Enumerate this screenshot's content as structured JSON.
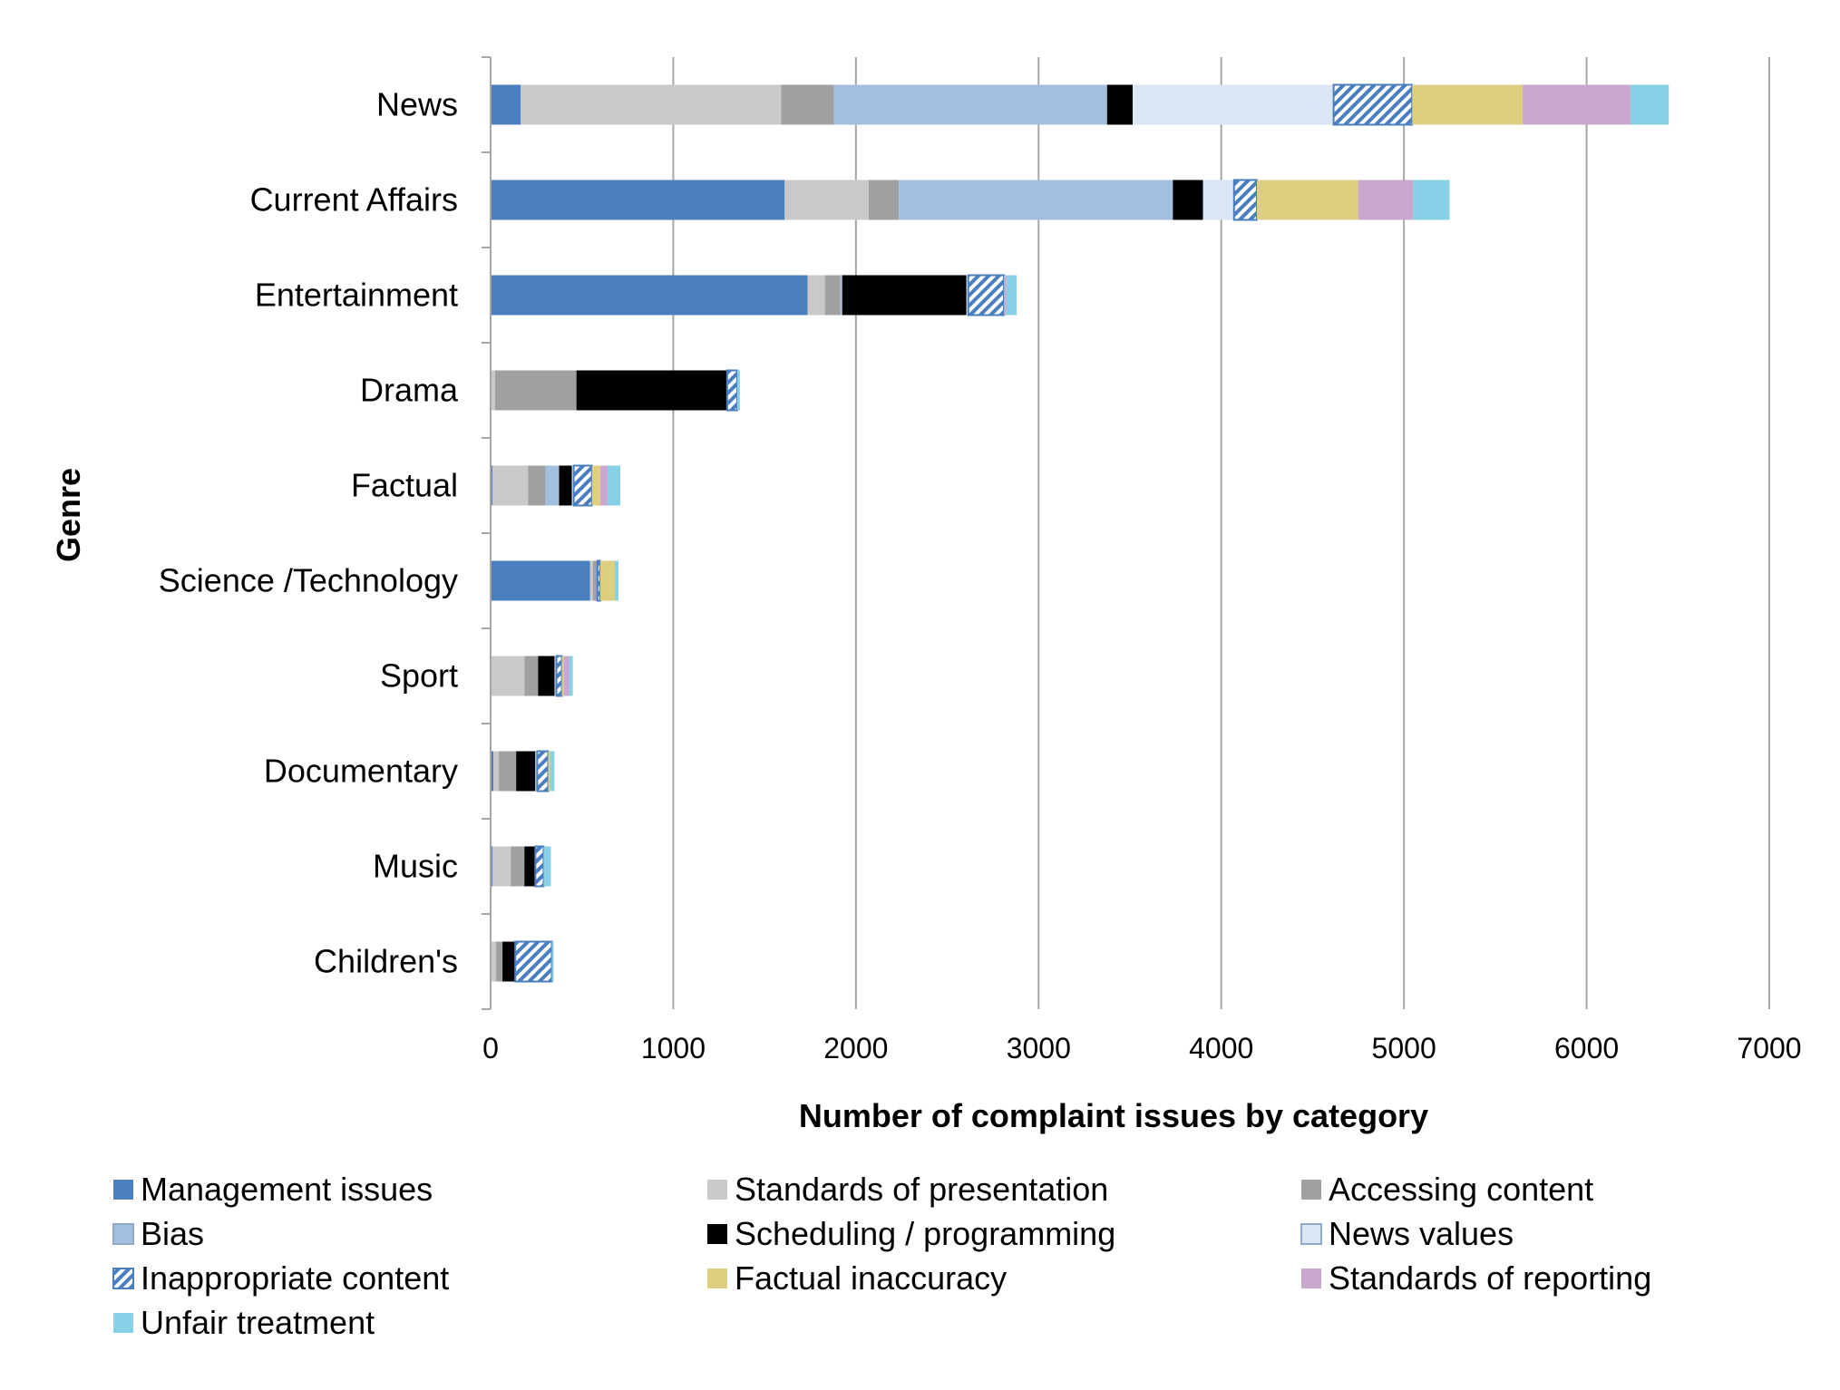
{
  "chart_data": {
    "type": "bar",
    "orientation": "horizontal",
    "stacked": true,
    "title": "",
    "xlabel": "Number of complaint issues by category",
    "ylabel": "Genre",
    "xlim": [
      0,
      7000
    ],
    "xticks": [
      0,
      1000,
      2000,
      3000,
      4000,
      5000,
      6000,
      7000
    ],
    "grid": "vertical",
    "legend_position": "bottom",
    "categories": [
      "News",
      "Current Affairs",
      "Entertainment",
      "Drama",
      "Factual",
      "Science /Technology",
      "Sport",
      "Documentary",
      "Music",
      "Children's"
    ],
    "series": [
      {
        "name": "Management issues",
        "color": "#4A7EBF",
        "pattern": "solid",
        "values": [
          165,
          1610,
          1735,
          0,
          10,
          545,
          0,
          15,
          10,
          0
        ]
      },
      {
        "name": "Standards of presentation",
        "color": "#C9C9C9",
        "pattern": "solid",
        "values": [
          1425,
          460,
          95,
          25,
          195,
          15,
          185,
          30,
          100,
          30
        ]
      },
      {
        "name": "Accessing content",
        "color": "#A0A0A0",
        "pattern": "solid",
        "values": [
          290,
          165,
          85,
          445,
          95,
          25,
          75,
          95,
          75,
          35
        ]
      },
      {
        "name": "Bias",
        "color": "#A3BFDF",
        "pattern": "solid",
        "values": [
          1495,
          1500,
          10,
          0,
          75,
          0,
          0,
          0,
          0,
          0
        ]
      },
      {
        "name": "Scheduling / programming",
        "color": "#000000",
        "pattern": "solid",
        "values": [
          140,
          165,
          680,
          825,
          70,
          0,
          90,
          105,
          60,
          70
        ]
      },
      {
        "name": "News values",
        "color": "#DAE6F4",
        "pattern": "solid",
        "values": [
          1100,
          170,
          10,
          0,
          10,
          0,
          10,
          10,
          0,
          0
        ]
      },
      {
        "name": "Inappropriate content",
        "color": "#4A7EBF",
        "pattern": "hatch",
        "values": [
          430,
          125,
          195,
          55,
          100,
          15,
          30,
          60,
          45,
          200
        ]
      },
      {
        "name": "Factual inaccuracy",
        "color": "#DDCE80",
        "pattern": "solid",
        "values": [
          605,
          555,
          0,
          0,
          45,
          80,
          10,
          10,
          0,
          0
        ]
      },
      {
        "name": "Standards of reporting",
        "color": "#C9A7CF",
        "pattern": "solid",
        "values": [
          590,
          300,
          10,
          0,
          40,
          0,
          30,
          0,
          0,
          0
        ]
      },
      {
        "name": "Unfair treatment",
        "color": "#88D0E6",
        "pattern": "solid",
        "values": [
          210,
          200,
          60,
          15,
          70,
          20,
          20,
          25,
          40,
          10
        ]
      }
    ]
  }
}
